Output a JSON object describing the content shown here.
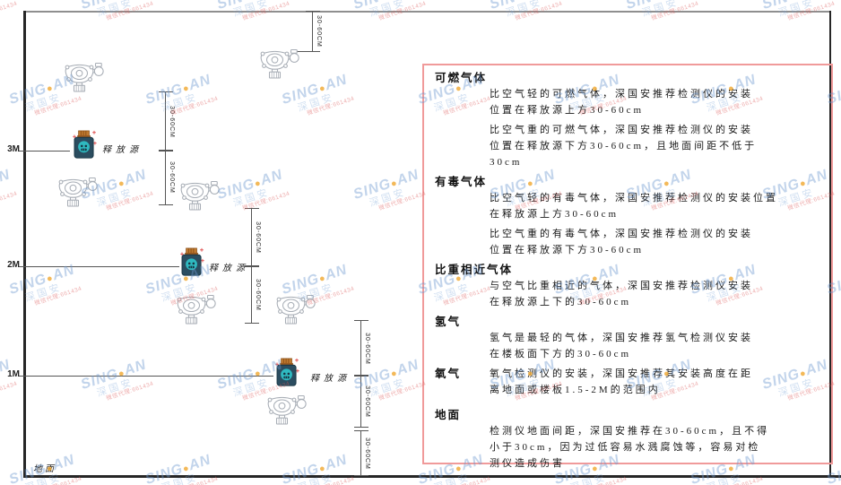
{
  "watermark": {
    "line1_pre": "SING",
    "line1_dot": "●",
    "line1_post": "AN",
    "line2": "深国安",
    "line3": "微信代理:661434"
  },
  "diagram": {
    "heights": [
      "3M",
      "2M",
      "1M"
    ],
    "release_source_label": "释放源",
    "ground_label": "地面",
    "dim_label": "30-60CM"
  },
  "panel": {
    "sections": [
      {
        "heading": "可燃气体",
        "inline": false,
        "paras": [
          [
            "比空气轻的可燃气体，深国安推荐检测仪的安装",
            "位置在释放源上方30-60cm"
          ],
          [
            "比空气重的可燃气体，深国安推荐检测仪的安装",
            "位置在释放源下方30-60cm，且地面间距不低于",
            "30cm"
          ]
        ]
      },
      {
        "heading": "有毒气体",
        "inline": false,
        "paras": [
          [
            "比空气轻的有毒气体，深国安推荐检测仪的安装位置",
            "在释放源上方30-60cm"
          ],
          [
            "比空气重的有毒气体，深国安推荐检测仪的安装",
            "位置在释放源下方30-60cm"
          ]
        ]
      },
      {
        "heading": "比重相近气体",
        "inline": false,
        "paras": [
          [
            "与空气比重相近的气体，深国安推荐检测仪安装",
            "在释放源上下的30-60cm"
          ]
        ]
      },
      {
        "heading": "氢气",
        "inline": false,
        "paras": [
          [
            "氢气是最轻的气体，深国安推荐氢气检测仪安装",
            "在楼板面下方的30-60cm"
          ]
        ]
      },
      {
        "heading": "氧气",
        "inline": true,
        "paras": [
          [
            "氧气检测仪的安装，深国安推荐其安装高度在距",
            "离地面或楼板1.5-2M的范围内"
          ]
        ]
      },
      {
        "heading": "地面",
        "inline": false,
        "paras": [
          [
            "检测仪地面间距，深国安推荐在30-60cm，且不得",
            "小于30cm，因为过低容易水溅腐蚀等，容易对检",
            "测仪造成伤害"
          ]
        ]
      }
    ]
  },
  "colors": {
    "panel_border": "#f09a9a",
    "wall": "#262626",
    "dim_line": "#555555",
    "watermark_blue": "#6e98d0",
    "watermark_orange": "#f0a830",
    "watermark_red": "#de5a5a",
    "source_body": "#2b4d60",
    "source_cap": "#c07a30",
    "source_emblem": "#2fb9c0"
  }
}
